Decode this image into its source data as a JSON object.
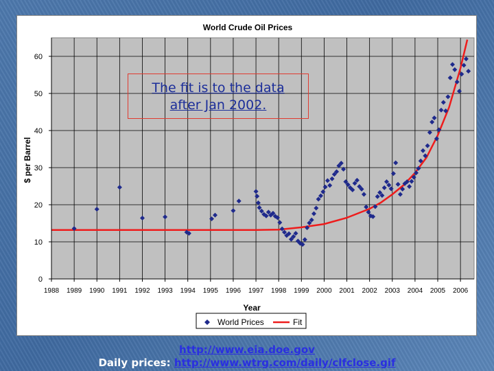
{
  "slide": {
    "callout_line1": "The fit is to the data",
    "callout_line2": "after Jan 2002.",
    "link1": "http://www.eia.doe.gov",
    "footer_prefix": "Daily prices: ",
    "link2": "http://www.wtrg.com/daily/clfclose.gif"
  },
  "chart_data": {
    "type": "scatter",
    "title": "World Crude Oil Prices",
    "xlabel": "Year",
    "ylabel": "$ per Barrel",
    "xlim": [
      1988,
      2006.6
    ],
    "ylim": [
      0,
      65
    ],
    "x_ticks": [
      1988,
      1989,
      1990,
      1991,
      1992,
      1993,
      1994,
      1995,
      1996,
      1997,
      1998,
      1999,
      2000,
      2001,
      2002,
      2003,
      2004,
      2005,
      2006
    ],
    "y_ticks": [
      0,
      10,
      20,
      30,
      40,
      50,
      60
    ],
    "grid": true,
    "legend_position": "bottom",
    "colors": {
      "prices": "#1f2a8c",
      "fit": "#ee1c1c",
      "plot_bg": "#c0c0c0"
    },
    "series": [
      {
        "name": "World Prices",
        "marker": "diamond",
        "points": [
          [
            1989.0,
            13.6
          ],
          [
            1990.0,
            18.8
          ],
          [
            1991.0,
            24.7
          ],
          [
            1992.0,
            16.4
          ],
          [
            1993.0,
            16.7
          ],
          [
            1993.95,
            12.6
          ],
          [
            1994.05,
            12.3
          ],
          [
            1995.05,
            16.2
          ],
          [
            1995.2,
            17.2
          ],
          [
            1996.0,
            18.4
          ],
          [
            1996.25,
            21.0
          ],
          [
            1997.0,
            23.6
          ],
          [
            1997.05,
            22.3
          ],
          [
            1997.1,
            20.5
          ],
          [
            1997.15,
            19.2
          ],
          [
            1997.25,
            18.3
          ],
          [
            1997.35,
            17.4
          ],
          [
            1997.45,
            17.0
          ],
          [
            1997.55,
            18.0
          ],
          [
            1997.65,
            17.2
          ],
          [
            1997.75,
            17.7
          ],
          [
            1997.85,
            16.9
          ],
          [
            1997.95,
            16.5
          ],
          [
            1998.05,
            15.2
          ],
          [
            1998.15,
            13.5
          ],
          [
            1998.25,
            12.6
          ],
          [
            1998.35,
            11.7
          ],
          [
            1998.45,
            12.2
          ],
          [
            1998.55,
            10.7
          ],
          [
            1998.65,
            11.4
          ],
          [
            1998.75,
            12.3
          ],
          [
            1998.85,
            10.2
          ],
          [
            1998.95,
            9.6
          ],
          [
            1999.05,
            9.3
          ],
          [
            1999.15,
            10.6
          ],
          [
            1999.25,
            13.8
          ],
          [
            1999.35,
            15.1
          ],
          [
            1999.45,
            15.9
          ],
          [
            1999.55,
            17.6
          ],
          [
            1999.65,
            19.1
          ],
          [
            1999.75,
            21.5
          ],
          [
            1999.85,
            22.4
          ],
          [
            1999.95,
            23.5
          ],
          [
            2000.05,
            24.8
          ],
          [
            2000.15,
            26.5
          ],
          [
            2000.25,
            25.2
          ],
          [
            2000.35,
            27.0
          ],
          [
            2000.45,
            28.2
          ],
          [
            2000.55,
            28.9
          ],
          [
            2000.65,
            30.5
          ],
          [
            2000.75,
            31.2
          ],
          [
            2000.85,
            29.6
          ],
          [
            2000.95,
            26.2
          ],
          [
            2001.05,
            25.4
          ],
          [
            2001.15,
            24.6
          ],
          [
            2001.25,
            24.0
          ],
          [
            2001.35,
            25.8
          ],
          [
            2001.45,
            26.6
          ],
          [
            2001.55,
            24.9
          ],
          [
            2001.65,
            24.2
          ],
          [
            2001.75,
            22.8
          ],
          [
            2001.85,
            19.4
          ],
          [
            2001.95,
            18.0
          ],
          [
            2002.05,
            17.0
          ],
          [
            2002.15,
            16.8
          ],
          [
            2002.25,
            19.5
          ],
          [
            2002.35,
            22.2
          ],
          [
            2002.45,
            23.3
          ],
          [
            2002.55,
            22.5
          ],
          [
            2002.65,
            24.6
          ],
          [
            2002.75,
            26.2
          ],
          [
            2002.85,
            25.3
          ],
          [
            2002.95,
            24.3
          ],
          [
            2003.05,
            28.4
          ],
          [
            2003.15,
            31.3
          ],
          [
            2003.25,
            25.5
          ],
          [
            2003.35,
            22.8
          ],
          [
            2003.45,
            24.2
          ],
          [
            2003.55,
            25.7
          ],
          [
            2003.65,
            26.2
          ],
          [
            2003.75,
            24.9
          ],
          [
            2003.85,
            26.3
          ],
          [
            2003.95,
            27.4
          ],
          [
            2004.05,
            28.6
          ],
          [
            2004.15,
            29.8
          ],
          [
            2004.25,
            31.8
          ],
          [
            2004.35,
            34.6
          ],
          [
            2004.45,
            33.2
          ],
          [
            2004.55,
            35.9
          ],
          [
            2004.65,
            39.5
          ],
          [
            2004.75,
            42.3
          ],
          [
            2004.85,
            43.4
          ],
          [
            2004.95,
            37.8
          ],
          [
            2005.05,
            40.2
          ],
          [
            2005.15,
            45.5
          ],
          [
            2005.25,
            47.6
          ],
          [
            2005.35,
            45.3
          ],
          [
            2005.45,
            49.1
          ],
          [
            2005.55,
            54.2
          ],
          [
            2005.65,
            57.8
          ],
          [
            2005.75,
            56.4
          ],
          [
            2005.85,
            53.1
          ],
          [
            2005.95,
            50.6
          ],
          [
            2006.05,
            55.2
          ],
          [
            2006.15,
            57.6
          ],
          [
            2006.25,
            59.3
          ],
          [
            2006.35,
            56.0
          ]
        ]
      },
      {
        "name": "Fit",
        "points": [
          [
            1988.0,
            13.2
          ],
          [
            1990.0,
            13.2
          ],
          [
            1993.0,
            13.2
          ],
          [
            1995.0,
            13.2
          ],
          [
            1997.0,
            13.2
          ],
          [
            1998.0,
            13.3
          ],
          [
            1999.0,
            13.9
          ],
          [
            2000.0,
            14.8
          ],
          [
            2001.0,
            16.5
          ],
          [
            2002.0,
            18.9
          ],
          [
            2002.5,
            20.6
          ],
          [
            2003.0,
            22.8
          ],
          [
            2003.5,
            25.3
          ],
          [
            2004.0,
            28.6
          ],
          [
            2004.5,
            32.7
          ],
          [
            2005.0,
            38.7
          ],
          [
            2005.5,
            46.3
          ],
          [
            2006.0,
            56.8
          ],
          [
            2006.3,
            64.5
          ]
        ]
      }
    ]
  }
}
